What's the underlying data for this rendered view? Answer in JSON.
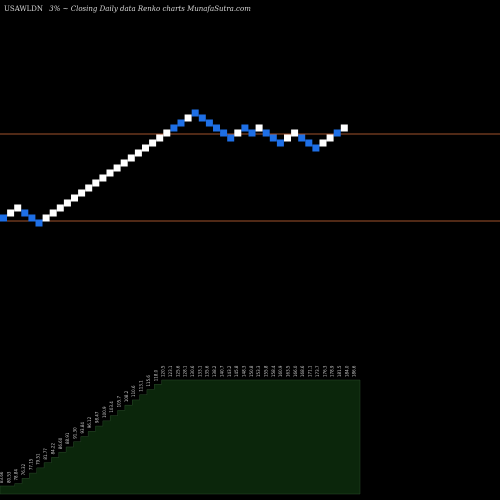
{
  "header": {
    "symbol": "USAWLDN",
    "pct": "3%",
    "arrow": "~",
    "description": "Closing Daily data  Renko  charts MunafaSutra.com"
  },
  "colors": {
    "background": "#000000",
    "up_brick": "#ffffff",
    "down_brick": "#1e6fe6",
    "line": "#a0522d",
    "volume_fill": "#0b260b"
  },
  "chart_data": {
    "type": "renko",
    "title": "USAWLDN 3% ~ Closing Daily data Renko charts MunafaSutra.com",
    "reference_levels": [
      134,
      221
    ],
    "bricks": {
      "direction": [
        "down",
        "up",
        "up",
        "down",
        "down",
        "down",
        "up",
        "up",
        "up",
        "up",
        "up",
        "up",
        "up",
        "up",
        "up",
        "up",
        "up",
        "up",
        "up",
        "up",
        "up",
        "up",
        "up",
        "up",
        "down",
        "down",
        "up",
        "down",
        "down",
        "down",
        "down",
        "down",
        "down",
        "up",
        "down",
        "down",
        "up",
        "down",
        "down",
        "down",
        "up",
        "up",
        "down",
        "down",
        "down",
        "up",
        "up",
        "down",
        "up"
      ],
      "level": [
        218,
        213,
        208,
        213,
        218,
        223,
        218,
        213,
        208,
        203,
        198,
        193,
        188,
        183,
        178,
        173,
        168,
        163,
        158,
        153,
        148,
        143,
        138,
        133,
        128,
        123,
        118,
        113,
        118,
        123,
        128,
        133,
        138,
        133,
        128,
        133,
        128,
        133,
        138,
        143,
        138,
        133,
        138,
        143,
        148,
        143,
        138,
        133,
        128
      ]
    },
    "volume_labels": [
      "83.66",
      "80.53",
      "78.84",
      "76.32",
      "77.15",
      "79.51",
      "81.77",
      "84.22",
      "86.60",
      "88.91",
      "91.30",
      "93.84",
      "96.12",
      "98.47",
      "100.9",
      "103.4",
      "105.7",
      "108.2",
      "110.6",
      "113.1",
      "115.6",
      "118.0",
      "120.5",
      "123.1",
      "125.6",
      "128.1",
      "130.6",
      "133.1",
      "135.6",
      "138.2",
      "140.7",
      "143.2",
      "145.8",
      "148.3",
      "150.8",
      "153.3",
      "155.8",
      "158.4",
      "160.9",
      "163.5",
      "166.0",
      "168.6",
      "171.1",
      "173.7",
      "176.3",
      "178.9",
      "181.5",
      "184.0",
      "186.6"
    ]
  }
}
